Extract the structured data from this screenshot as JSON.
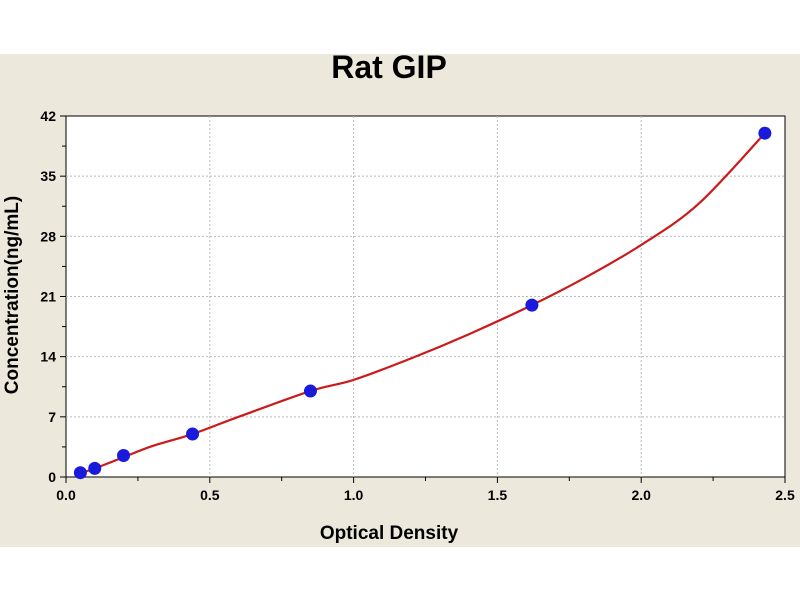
{
  "chart_data": {
    "type": "scatter",
    "title": "Rat GIP",
    "xlabel": "Optical Density",
    "ylabel": "Concentration(ng/mL)",
    "xlim": [
      0,
      2.5
    ],
    "ylim": [
      0,
      42
    ],
    "x_ticks": [
      "0.0",
      "0.5",
      "1.0",
      "1.5",
      "2.0",
      "2.5"
    ],
    "y_ticks": [
      "0",
      "7",
      "14",
      "21",
      "28",
      "35",
      "42"
    ],
    "grid": true,
    "series": [
      {
        "points": [
          {
            "x": 0.05,
            "y": 0.5
          },
          {
            "x": 0.1,
            "y": 1.0
          },
          {
            "x": 0.2,
            "y": 2.5
          },
          {
            "x": 0.44,
            "y": 5.0
          },
          {
            "x": 0.85,
            "y": 10.0
          },
          {
            "x": 1.62,
            "y": 20.0
          },
          {
            "x": 2.43,
            "y": 40.0
          }
        ],
        "fit_curve": {
          "x": [
            0.03,
            0.1,
            0.2,
            0.3,
            0.44,
            0.6,
            0.85,
            1.0,
            1.2,
            1.4,
            1.62,
            1.8,
            2.0,
            2.2,
            2.43
          ],
          "y": [
            0.2,
            1.0,
            2.3,
            3.6,
            5.0,
            7.0,
            10.0,
            11.3,
            13.8,
            16.6,
            20.0,
            23.1,
            27.0,
            31.8,
            40.0
          ]
        },
        "marker_color": "#1a1adc",
        "line_color": "#cc1a1a"
      }
    ]
  }
}
